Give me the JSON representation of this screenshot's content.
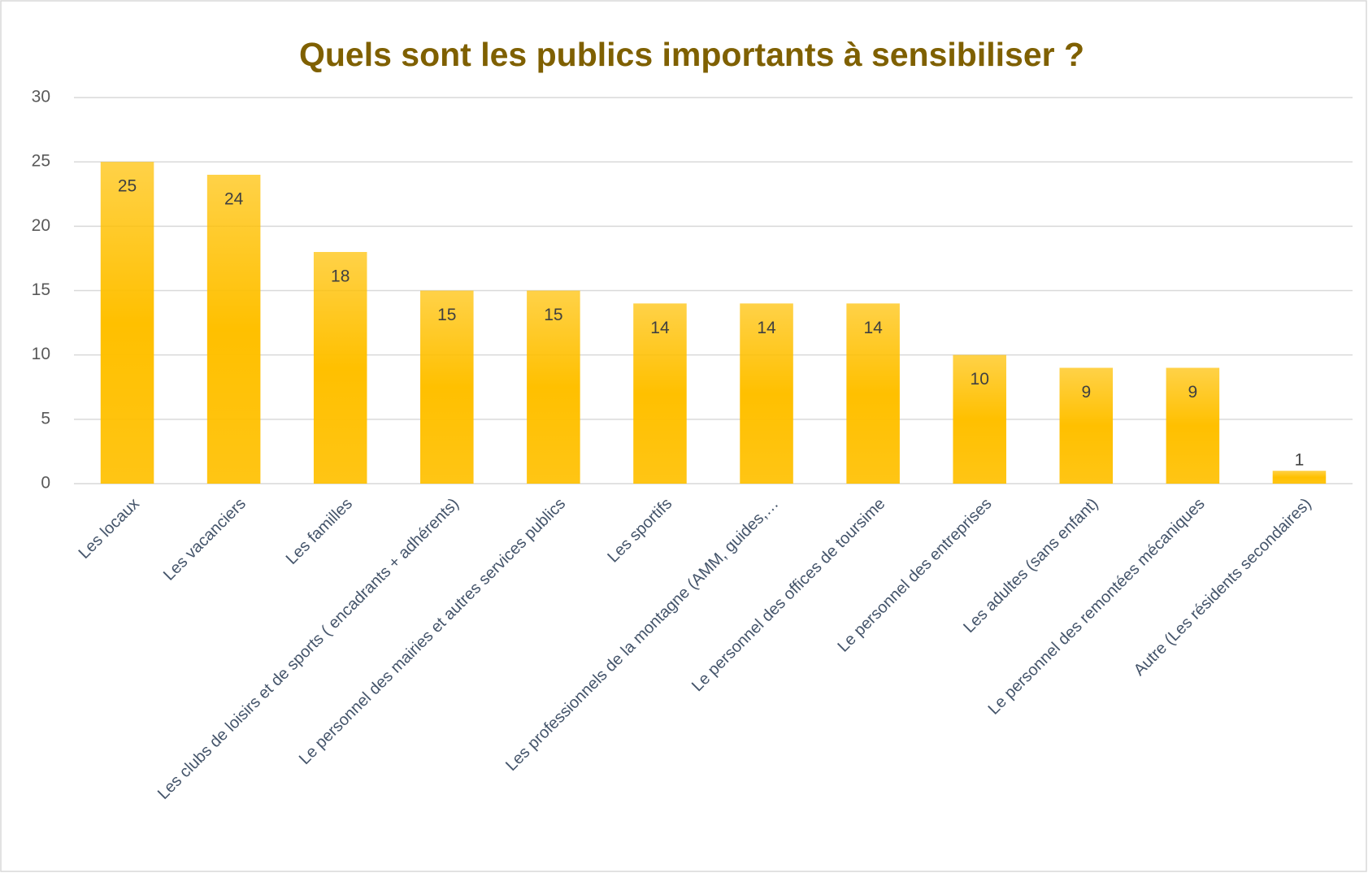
{
  "chart_data": {
    "type": "bar",
    "title": "Quels sont les publics importants à sensibiliser ?",
    "categories": [
      "Les locaux",
      "Les vacanciers",
      "Les familles",
      "Les clubs de loisirs et de sports ( encadrants + adhérents)",
      "Le personnel des mairies et autres services publics",
      "Les sportifs",
      "Les professionnels de la montagne (AMM, guides,…",
      "Le personnel des offices de toursime",
      "Le personnel des entreprises",
      "Les adultes (sans enfant)",
      "Le personnel des remontées mécaniques",
      "Autre (Les résidents secondaires)"
    ],
    "values": [
      25,
      24,
      18,
      15,
      15,
      14,
      14,
      14,
      10,
      9,
      9,
      1
    ],
    "color": "#ffc000",
    "ylim": [
      0,
      30
    ],
    "yticks": [
      0,
      5,
      10,
      15,
      20,
      25,
      30
    ],
    "grid": true
  }
}
